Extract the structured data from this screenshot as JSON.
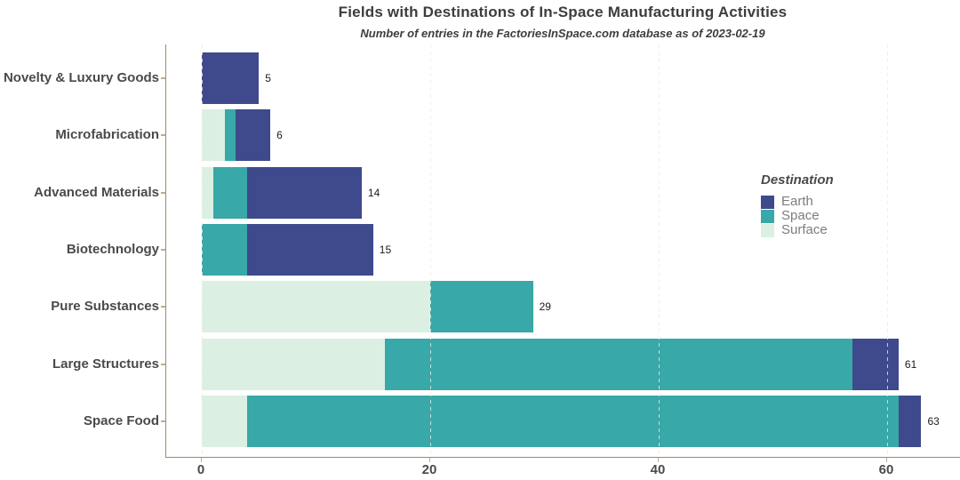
{
  "header": {
    "title": "Fields with Destinations of In-Space Manufacturing Activities",
    "subtitle": "Number of entries in the FactoriesInSpace.com database as of 2023-02-19"
  },
  "legend": {
    "title": "Destination",
    "position": "inside-right",
    "items": [
      {
        "label": "Earth",
        "color": "#3e4a8c"
      },
      {
        "label": "Space",
        "color": "#38a8a8"
      },
      {
        "label": "Surface",
        "color": "#dbf0e2"
      }
    ]
  },
  "chart_data": {
    "type": "bar",
    "orientation": "horizontal",
    "stacked": true,
    "stack_order_from_axis": [
      "Surface",
      "Space",
      "Earth"
    ],
    "title": "Fields with Destinations of In-Space Manufacturing Activities",
    "subtitle": "Number of entries in the FactoriesInSpace.com database as of 2023-02-19",
    "xlabel": "",
    "ylabel": "",
    "categories": [
      "Novelty & Luxury Goods",
      "Microfabrication",
      "Advanced Materials",
      "Biotechnology",
      "Pure Substances",
      "Large Structures",
      "Space Food"
    ],
    "series": [
      {
        "name": "Surface",
        "color": "#dbf0e2",
        "values": [
          0,
          2,
          1,
          0,
          20,
          16,
          4
        ]
      },
      {
        "name": "Space",
        "color": "#38a8a8",
        "values": [
          0,
          1,
          3,
          4,
          9,
          41,
          57
        ]
      },
      {
        "name": "Earth",
        "color": "#3e4a8c",
        "values": [
          5,
          3,
          10,
          11,
          0,
          4,
          2
        ]
      }
    ],
    "totals": [
      5,
      6,
      14,
      15,
      29,
      61,
      63
    ],
    "x_ticks": [
      0,
      20,
      40,
      60
    ],
    "xlim": [
      0,
      66.5
    ],
    "grid": "dashed vertical lines at major x ticks",
    "colors": {
      "axis_line": "#a1896a",
      "tick_mark": "#c2ab90",
      "gridline": "#f3e9df",
      "title_text": "#3d3d3d",
      "axis_text": "#4a4a4a",
      "value_label_text": "#1a1a1a",
      "legend_text": "#7d7d7d",
      "panel_background": "#ffffff"
    }
  }
}
